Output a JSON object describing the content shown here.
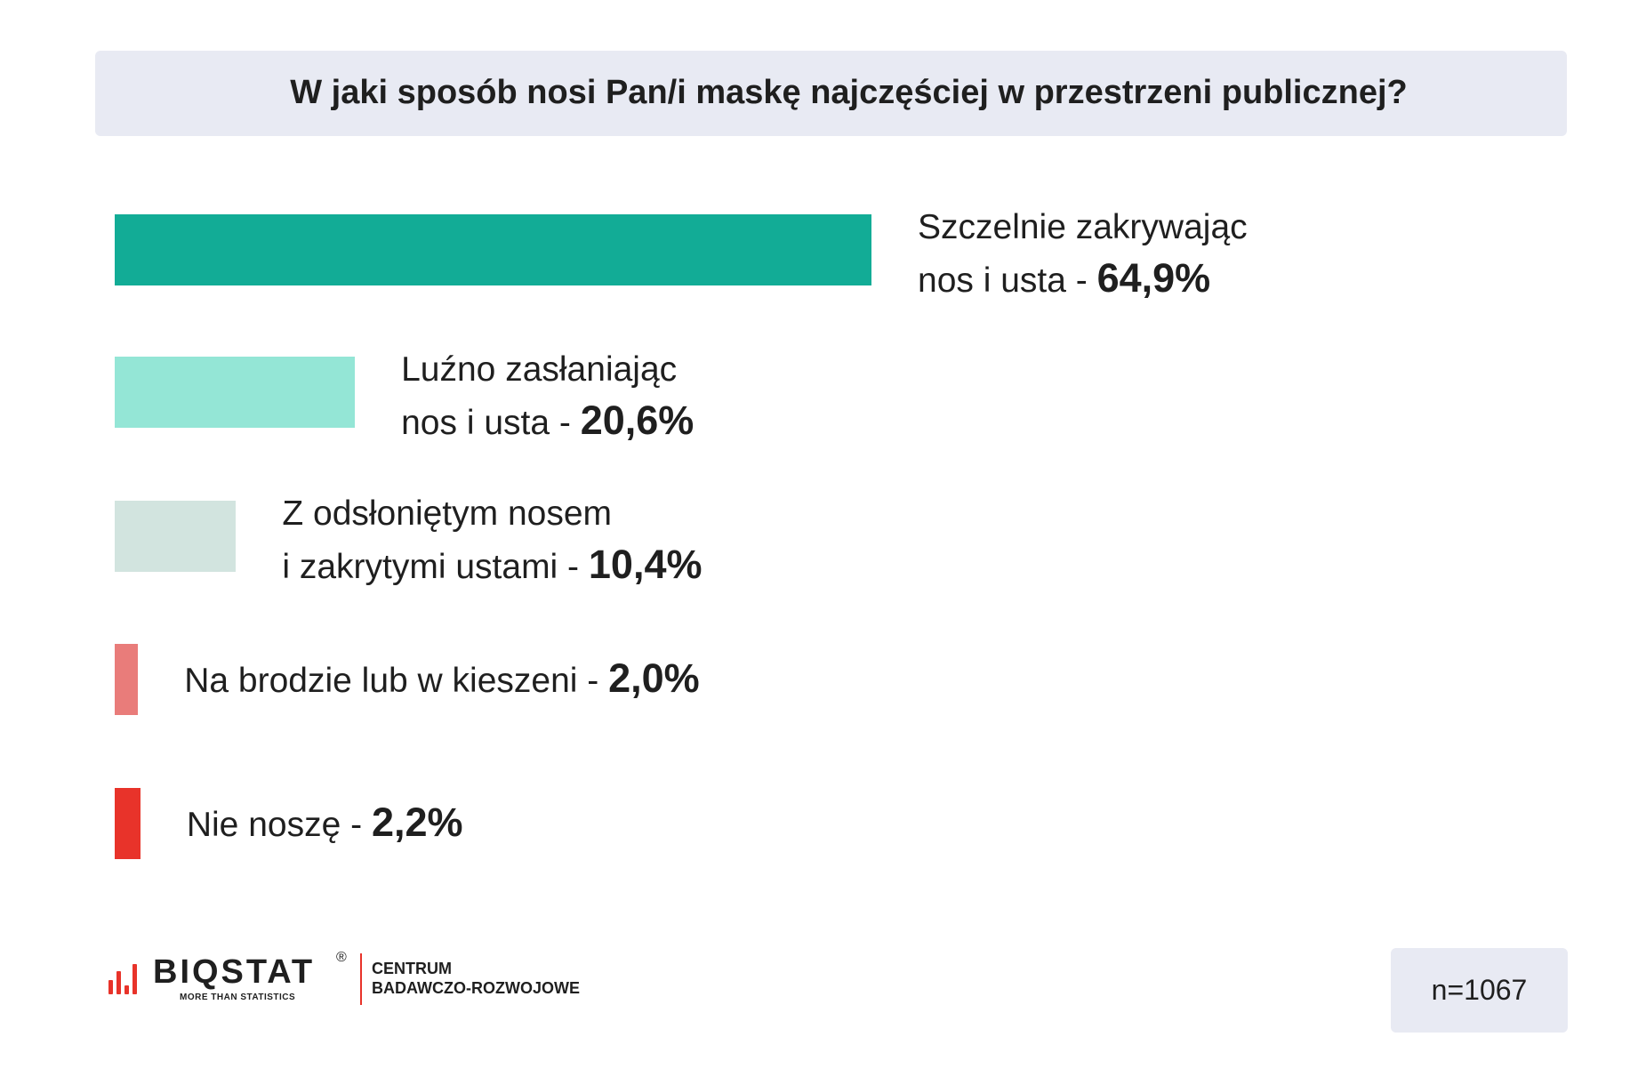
{
  "title": "W jaki sposób nosi Pan/i maskę najczęściej w przestrzeni publicznej?",
  "chart_data": {
    "type": "bar",
    "orientation": "horizontal",
    "title": "W jaki sposób nosi Pan/i maskę najczęściej w przestrzeni publicznej?",
    "categories": [
      "Szczelnie zakrywając nos i usta",
      "Luźno zasłaniając nos i usta",
      "Z odsłoniętym nosem i zakrytymi ustami",
      "Na brodzie lub w kieszeni",
      "Nie noszę"
    ],
    "values": [
      64.9,
      20.6,
      10.4,
      2.0,
      2.2
    ],
    "unit": "%",
    "colors": [
      "#12ac96",
      "#94e6d6",
      "#d2e4df",
      "#e97c7a",
      "#e8332a"
    ],
    "bars": [
      {
        "label_lines": [
          "Szczelnie zakrywając",
          "nos i usta - "
        ],
        "value_text": "64,9%",
        "value": 64.9,
        "color": "#12ac96"
      },
      {
        "label_lines": [
          "Luźno zasłaniając",
          "nos i usta - "
        ],
        "value_text": "20,6%",
        "value": 20.6,
        "color": "#94e6d6"
      },
      {
        "label_lines": [
          "Z odsłoniętym nosem",
          "i zakrytymi ustami - "
        ],
        "value_text": "10,4%",
        "value": 10.4,
        "color": "#d2e4df"
      },
      {
        "label_lines": [
          "Na brodzie lub w kieszeni - "
        ],
        "value_text": "2,0%",
        "value": 2.0,
        "color": "#e97c7a"
      },
      {
        "label_lines": [
          "Nie noszę - "
        ],
        "value_text": "2,2%",
        "value": 2.2,
        "color": "#e8332a"
      }
    ],
    "grid": false,
    "legend": "none"
  },
  "footer": {
    "logo_word": "BIQSTAT",
    "logo_registered": "®",
    "logo_tagline": "MORE THAN STATISTICS",
    "org_line1": "CENTRUM",
    "org_line2": "BADAWCZO-ROZWOJOWE",
    "sample_size": "n=1067"
  },
  "colors": {
    "accent_red": "#e8332a",
    "panel_bg": "#e8eaf3"
  }
}
